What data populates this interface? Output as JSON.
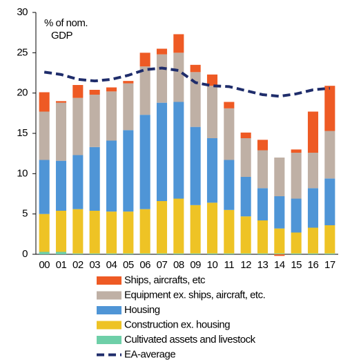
{
  "chart_data": {
    "type": "bar",
    "stacked": true,
    "annotation": [
      "% of  nom.",
      "GDP"
    ],
    "categories": [
      "00",
      "01",
      "02",
      "03",
      "04",
      "05",
      "06",
      "07",
      "08",
      "09",
      "10",
      "11",
      "12",
      "13",
      "14",
      "15",
      "16",
      "17"
    ],
    "series": [
      {
        "name": "Ships, aircrafts, etc",
        "color": "#ee5a24",
        "values": [
          2.4,
          0.2,
          1.6,
          0.6,
          0.5,
          0.3,
          1.7,
          0.7,
          2.3,
          0.9,
          1.4,
          0.8,
          0.7,
          1.3,
          -0.2,
          0.4,
          5.1,
          5.6
        ]
      },
      {
        "name": "Equipment ex. ships, aircraft, etc.",
        "color": "#bfb0a5",
        "values": [
          6.0,
          7.2,
          7.1,
          6.5,
          6.1,
          5.8,
          6.0,
          6.0,
          6.1,
          6.8,
          6.5,
          6.4,
          4.8,
          4.7,
          4.8,
          5.7,
          4.4,
          5.9
        ]
      },
      {
        "name": "Housing",
        "color": "#4f95d6",
        "values": [
          6.7,
          6.2,
          6.7,
          7.9,
          8.8,
          10.1,
          11.7,
          12.2,
          12.0,
          9.7,
          8.0,
          6.2,
          4.9,
          4.0,
          4.0,
          4.2,
          4.9,
          5.8
        ]
      },
      {
        "name": "Construction ex. housing",
        "color": "#eec325",
        "values": [
          4.7,
          5.1,
          5.5,
          5.3,
          5.2,
          5.2,
          5.5,
          6.5,
          6.8,
          6.0,
          6.3,
          5.4,
          4.6,
          4.1,
          3.1,
          2.6,
          3.2,
          3.5
        ]
      },
      {
        "name": "Cultivated assets and livestock",
        "color": "#6ecfa8",
        "values": [
          0.3,
          0.3,
          0.1,
          0.1,
          0.1,
          0.1,
          0.1,
          0.1,
          0.1,
          0.1,
          0.1,
          0.1,
          0.1,
          0.1,
          0.1,
          0.1,
          0.1,
          0.1
        ]
      },
      {
        "name": "EA-average",
        "type": "line",
        "color": "#1f2d6b",
        "dashed": true,
        "values": [
          22.6,
          22.3,
          21.7,
          21.5,
          21.7,
          22.2,
          22.9,
          23.1,
          22.8,
          21.3,
          20.9,
          20.8,
          20.3,
          19.8,
          19.6,
          19.9,
          20.4,
          20.6
        ]
      }
    ],
    "ylim": [
      0,
      30
    ],
    "yticks": [
      0,
      5,
      10,
      15,
      20,
      25,
      30
    ],
    "grid": false
  }
}
